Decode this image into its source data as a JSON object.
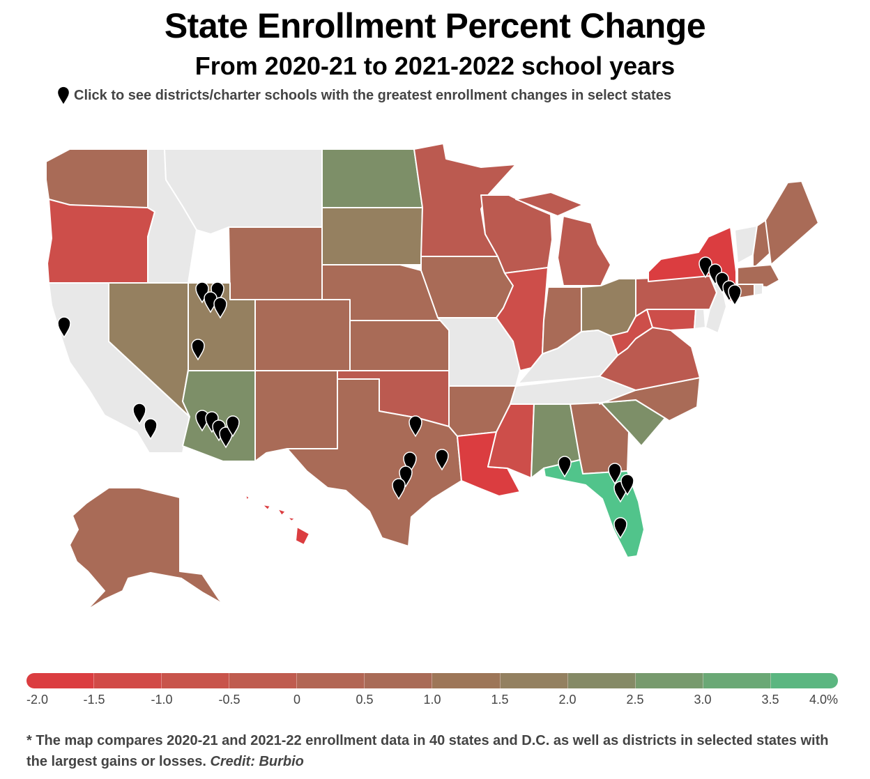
{
  "header": {
    "title": "State Enrollment Percent Change",
    "subtitle": "From 2020-21 to 2021-2022 school years",
    "hint": "Click to see districts/charter schools with the greatest enrollment changes in select states"
  },
  "colors": {
    "nodata": "#e8e8e8",
    "red_strong": "#db3d40",
    "red": "#cd4e4a",
    "red_mid": "#bb5a50",
    "brown": "#a96b57",
    "tan": "#958060",
    "olive": "#7d8f68",
    "green_mid": "#77a171",
    "green": "#51c48b",
    "pin": "#000000"
  },
  "legend": {
    "ticks": [
      "-2.0",
      "-1.5",
      "-1.0",
      "-0.5",
      "0",
      "0.5",
      "1.0",
      "1.5",
      "2.0",
      "2.5",
      "3.0",
      "3.5",
      "4.0%"
    ],
    "swatches": [
      "#db3d40",
      "#d14a47",
      "#c8544b",
      "#bf5c4f",
      "#b26654",
      "#a96b57",
      "#9d7658",
      "#938060",
      "#858a66",
      "#779a6d",
      "#6aa875",
      "#5bb680"
    ]
  },
  "footer": {
    "note": "* The map compares 2020-21 and 2021-22 enrollment data in 40 states and D.C. as well as districts in selected states with the largest gains or losses.",
    "credit": "Credit: Burbio"
  }
}
